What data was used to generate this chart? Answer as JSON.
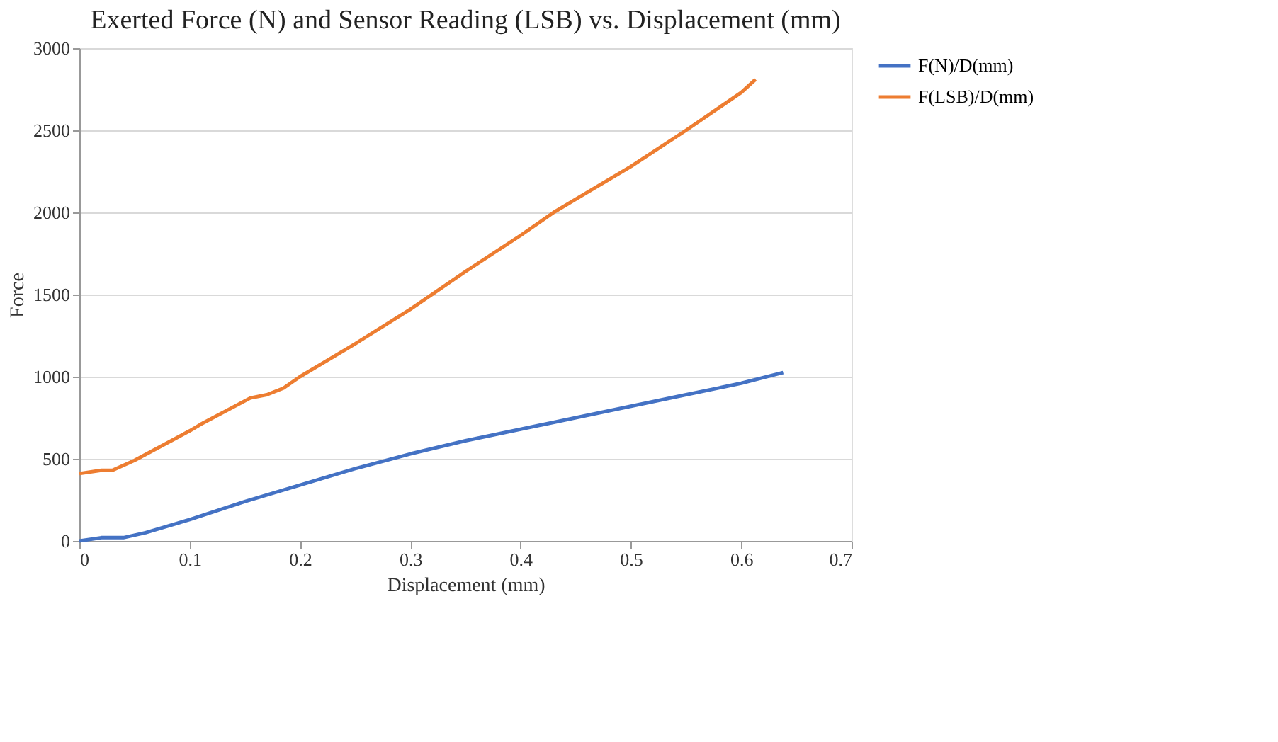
{
  "chart_data": {
    "type": "line",
    "title": "Exerted Force (N) and Sensor Reading (LSB) vs. Displacement (mm)",
    "xlabel": "Displacement (mm)",
    "ylabel": "Force",
    "xlim": [
      0,
      0.7
    ],
    "xticks": [
      0,
      0.1,
      0.2,
      0.3,
      0.4,
      0.5,
      0.6,
      0.7
    ],
    "ylim": [
      0,
      3000
    ],
    "yticks": [
      0,
      500,
      1000,
      1500,
      2000,
      2500,
      3000
    ],
    "grid": "y",
    "legend": "right",
    "marker": "none",
    "line_style": "solid",
    "series": [
      {
        "name": "F(N)/D(mm)",
        "color": "#4472c4",
        "x": [
          0,
          0.02,
          0.04,
          0.06,
          0.1,
          0.15,
          0.2,
          0.25,
          0.3,
          0.35,
          0.4,
          0.45,
          0.5,
          0.55,
          0.6,
          0.638
        ],
        "values": [
          0,
          20,
          20,
          50,
          130,
          240,
          340,
          440,
          530,
          610,
          680,
          750,
          820,
          890,
          960,
          1025
        ]
      },
      {
        "name": "F(LSB)/D(mm)",
        "color": "#ed7d31",
        "x": [
          0,
          0.02,
          0.03,
          0.05,
          0.1,
          0.11,
          0.155,
          0.17,
          0.185,
          0.2,
          0.25,
          0.3,
          0.35,
          0.4,
          0.43,
          0.45,
          0.5,
          0.55,
          0.6,
          0.613
        ],
        "values": [
          410,
          430,
          430,
          490,
          670,
          710,
          870,
          890,
          930,
          1000,
          1200,
          1410,
          1640,
          1860,
          2000,
          2080,
          2280,
          2500,
          2730,
          2810
        ]
      }
    ]
  }
}
